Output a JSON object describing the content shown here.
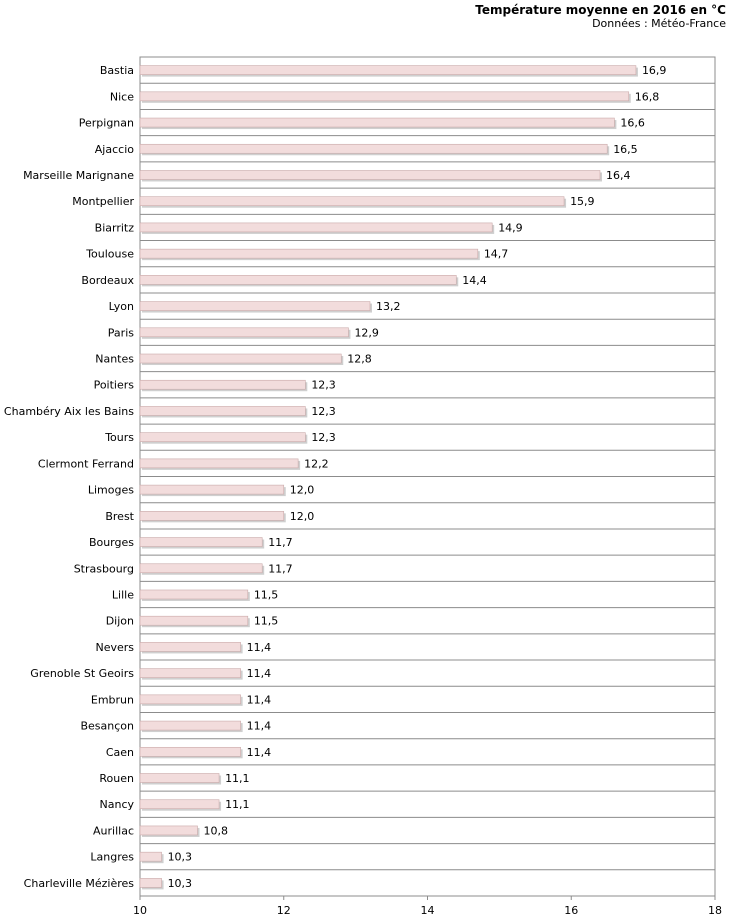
{
  "chart_data": {
    "type": "bar",
    "orientation": "horizontal",
    "title": "Température moyenne en 2016 en °C",
    "subtitle": "Données : Météo-France",
    "categories": [
      "Bastia",
      "Nice",
      "Perpignan",
      "Ajaccio",
      "Marseille Marignane",
      "Montpellier",
      "Biarritz",
      "Toulouse",
      "Bordeaux",
      "Lyon",
      "Paris",
      "Nantes",
      "Poitiers",
      "Chambéry Aix les Bains",
      "Tours",
      "Clermont Ferrand",
      "Limoges",
      "Brest",
      "Bourges",
      "Strasbourg",
      "Lille",
      "Dijon",
      "Nevers",
      "Grenoble St Geoirs",
      "Embrun",
      "Besançon",
      "Caen",
      "Rouen",
      "Nancy",
      "Aurillac",
      "Langres",
      "Charleville Mézières"
    ],
    "values": [
      16.9,
      16.8,
      16.6,
      16.5,
      16.4,
      15.9,
      14.9,
      14.7,
      14.4,
      13.2,
      12.9,
      12.8,
      12.3,
      12.3,
      12.3,
      12.2,
      12.0,
      12.0,
      11.7,
      11.7,
      11.5,
      11.5,
      11.4,
      11.4,
      11.4,
      11.4,
      11.4,
      11.1,
      11.1,
      10.8,
      10.3,
      10.3
    ],
    "value_labels": [
      "16,9",
      "16,8",
      "16,6",
      "16,5",
      "16,4",
      "15,9",
      "14,9",
      "14,7",
      "14,4",
      "13,2",
      "12,9",
      "12,8",
      "12,3",
      "12,3",
      "12,3",
      "12,2",
      "12,0",
      "12,0",
      "11,7",
      "11,7",
      "11,5",
      "11,5",
      "11,4",
      "11,4",
      "11,4",
      "11,4",
      "11,4",
      "11,1",
      "11,1",
      "10,8",
      "10,3",
      "10,3"
    ],
    "xlim": [
      10,
      18
    ],
    "xticks": [
      10,
      12,
      14,
      16,
      18
    ],
    "xlabel": "",
    "ylabel": "",
    "grid": "horizontal",
    "bar_color": "#f2dcdc",
    "bar_edge_color": "#c9a9a9"
  }
}
